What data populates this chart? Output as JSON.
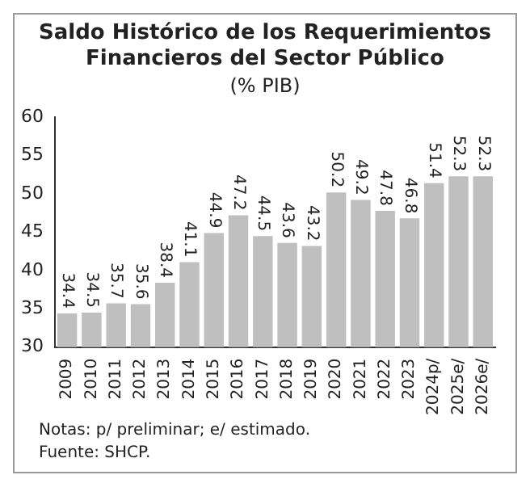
{
  "chart_data": {
    "type": "bar",
    "title": "Saldo Histórico de los Requerimientos Financieros del Sector Público",
    "subtitle": "(% PIB)",
    "categories": [
      "2009",
      "2010",
      "2011",
      "2012",
      "2013",
      "2014",
      "2015",
      "2016",
      "2017",
      "2018",
      "2019",
      "2020",
      "2021",
      "2022",
      "2023",
      "2024p/",
      "2025e/",
      "2026e/"
    ],
    "values": [
      34.4,
      34.5,
      35.7,
      35.6,
      38.4,
      41.1,
      44.9,
      47.2,
      44.5,
      43.6,
      43.2,
      50.2,
      49.2,
      47.8,
      46.8,
      51.4,
      52.3,
      52.3
    ],
    "color": "#bfbfbf",
    "ylim": [
      30,
      60
    ],
    "yticks": [
      30,
      35,
      40,
      45,
      50,
      55,
      60
    ],
    "grid": false,
    "data_labels": true,
    "annotations": [
      "Notas: p/ preliminar; e/ estimado.",
      "Fuente: SHCP."
    ]
  }
}
